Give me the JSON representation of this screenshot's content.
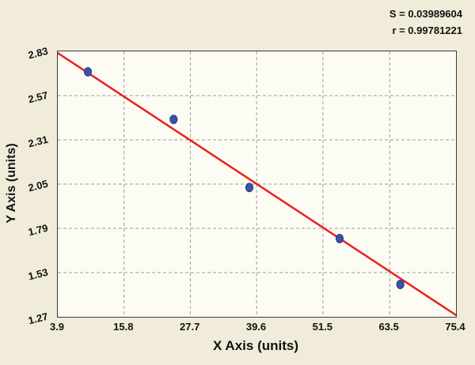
{
  "annotations": {
    "s_value": "S = 0.03989604",
    "r_value": "r = 0.99781221"
  },
  "axes": {
    "x_label": "X Axis (units)",
    "y_label": "Y Axis (units)"
  },
  "chart_data": {
    "type": "scatter",
    "title": "",
    "xlabel": "X Axis (units)",
    "ylabel": "Y Axis (units)",
    "xlim": [
      3.9,
      75.4
    ],
    "ylim": [
      1.27,
      2.83
    ],
    "xticks": [
      3.9,
      15.8,
      27.7,
      39.6,
      51.5,
      63.5,
      75.4
    ],
    "yticks": [
      1.27,
      1.53,
      1.79,
      2.05,
      2.31,
      2.57,
      2.83
    ],
    "xtick_labels": [
      "3.9",
      "15.8",
      "27.7",
      "39.6",
      "51.5",
      "63.5",
      "75.4"
    ],
    "ytick_labels_top_down": [
      "2.83",
      "2.57",
      "2.31",
      "2.05",
      "1.79",
      "1.53",
      "1.27"
    ],
    "points": [
      [
        9.3,
        2.71
      ],
      [
        24.7,
        2.43
      ],
      [
        38.3,
        2.03
      ],
      [
        54.5,
        1.73
      ],
      [
        65.4,
        1.46
      ]
    ],
    "trendline": {
      "x": [
        3.9,
        75.4
      ],
      "y": [
        2.82,
        1.28
      ]
    },
    "grid": "dashed",
    "legend": "none",
    "stats": {
      "S": 0.03989604,
      "r": 0.99781221
    },
    "colors": {
      "point_fill": "#3a53a4",
      "point_stroke": "#27397e",
      "trend_line": "#e8201e",
      "grid_line": "#9a9a9a",
      "background": "#f0ecd9",
      "plot_background": "#fdfcf4",
      "text": "#111111"
    }
  }
}
